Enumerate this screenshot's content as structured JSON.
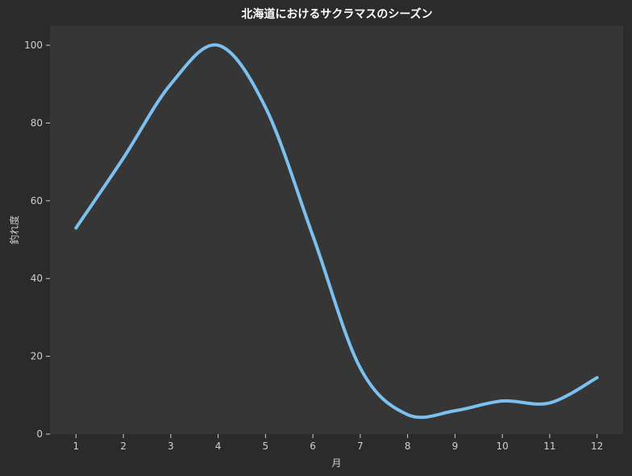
{
  "chart_data": {
    "type": "line",
    "title": "北海道におけるサクラマスのシーズン",
    "xlabel": "月",
    "ylabel": "釣れ度",
    "x": [
      1,
      2,
      3,
      4,
      5,
      6,
      7,
      8,
      9,
      10,
      11,
      12
    ],
    "series": [
      {
        "values": [
          53,
          71,
          90,
          100,
          84,
          51,
          17,
          5,
          6,
          8.5,
          8,
          14.5
        ]
      }
    ],
    "xlim": [
      0.45,
      12.55
    ],
    "ylim": [
      0,
      105
    ],
    "yticks": [
      0,
      20,
      40,
      60,
      80,
      100
    ],
    "grid": false,
    "line_color": "#7cc0f0",
    "plot_bg": "#363636",
    "page_bg": "#2b2b2b"
  }
}
